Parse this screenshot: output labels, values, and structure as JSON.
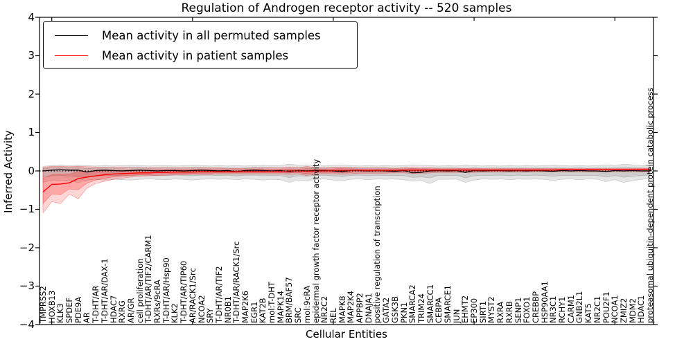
{
  "title": "Regulation of Androgen receptor activity -- 520 samples",
  "legend": {
    "items": [
      {
        "label": "Mean activity in all permuted samples",
        "color": "#000000"
      },
      {
        "label": "Mean activity in patient samples",
        "color": "#ff0000"
      }
    ]
  },
  "chart_data": {
    "type": "line",
    "title": "Regulation of Androgen receptor activity -- 520 samples",
    "xlabel": "Cellular Entities",
    "ylabel": "Inferred Activity",
    "ylim": [
      -4,
      4
    ],
    "yticks": [
      4,
      3,
      2,
      1,
      0,
      -1,
      -2,
      -3,
      -4
    ],
    "grid": false,
    "legend_position": "upper left",
    "reference_line": {
      "y": 0,
      "style": "dotted",
      "color": "#000000"
    },
    "categories": [
      "TMPRSS2",
      "HOXB13",
      "KLK3",
      "SPDEF",
      "PDE9A",
      "AR",
      "T-DHT/AR",
      "T-DHT/AR/DAX-1",
      "HDAC7",
      "RXRG",
      "AR/GR",
      "cell proliferation",
      "T-DHT/AR/TIF2/CARM1",
      "RXRs/9cRA",
      "T-DHT/AR/Hsp90",
      "KLK2",
      "T-DHT/AR/TIP60",
      "AR/RACK1/Src",
      "NCOA2",
      "SRY",
      "T-DHT/AR/TIF2",
      "NR0B1",
      "T-DHT/AR/RACK1/Src",
      "MAP2K6",
      "EGR1",
      "KAT2B",
      "mol:T-DHT",
      "MAPK14",
      "BRM/BAF57",
      "SRC",
      "mol:9cRA",
      "epidermal growth factor receptor activity",
      "NR2C2",
      "REL",
      "MAPK8",
      "MAP2K4",
      "APPBP2",
      "DNAJA1",
      "positive regulation of transcription",
      "GATA2",
      "GSK3B",
      "PKN1",
      "SMARCA2",
      "TRIM24",
      "SMARCC1",
      "CEBPA",
      "SMARCE1",
      "JUN",
      "EHMT2",
      "EP300",
      "SIRT1",
      "MYST2",
      "RXRA",
      "RXRB",
      "SENP1",
      "FOXO1",
      "CREBBP",
      "HSP90AA1",
      "NR3C1",
      "RCHY1",
      "CARM1",
      "GNB2L1",
      "KAT5",
      "NR2C1",
      "POU2F1",
      "NCOA1",
      "ZMIZ2",
      "MDM2",
      "HDAC1",
      "proteasomal ubiquitin-dependent protein catabolic process"
    ],
    "series": [
      {
        "name": "Mean activity in all permuted samples",
        "color": "#000000",
        "values": [
          0.0,
          0.02,
          0.03,
          0.02,
          0.02,
          -0.03,
          0.01,
          0.02,
          0.01,
          0.0,
          0.01,
          0.02,
          0.01,
          0.0,
          0.01,
          0.01,
          0.0,
          0.01,
          0.02,
          0.01,
          0.0,
          0.01,
          -0.02,
          0.01,
          0.02,
          0.01,
          0.0,
          0.01,
          -0.02,
          0.01,
          0.0,
          0.01,
          0.01,
          0.0,
          -0.02,
          0.01,
          0.01,
          0.0,
          0.01,
          0.0,
          -0.01,
          0.01,
          -0.05,
          -0.04,
          0.0,
          0.01,
          0.0,
          0.01,
          -0.04,
          0.01,
          0.0,
          0.01,
          0.01,
          0.0,
          0.01,
          0.0,
          0.01,
          0.0,
          -0.01,
          0.01,
          0.0,
          0.01,
          0.0,
          0.0,
          -0.02,
          0.01,
          0.0,
          0.01,
          0.0,
          0.0
        ]
      },
      {
        "name": "Mean activity in patient samples",
        "color": "#ff0000",
        "values": [
          -0.55,
          -0.35,
          -0.34,
          -0.31,
          -0.2,
          -0.16,
          -0.13,
          -0.1,
          -0.08,
          -0.07,
          -0.06,
          -0.05,
          -0.05,
          -0.04,
          -0.04,
          -0.03,
          -0.03,
          -0.03,
          -0.02,
          -0.02,
          -0.02,
          -0.02,
          -0.02,
          -0.01,
          -0.01,
          -0.01,
          -0.01,
          -0.01,
          0.0,
          0.0,
          -0.01,
          0.0,
          0.0,
          0.01,
          0.01,
          0.01,
          0.01,
          0.01,
          0.01,
          0.01,
          0.01,
          0.02,
          0.02,
          0.02,
          0.02,
          0.02,
          0.02,
          0.02,
          0.02,
          0.02,
          0.02,
          0.02,
          0.02,
          0.02,
          0.02,
          0.02,
          0.02,
          0.02,
          0.02,
          0.03,
          0.03,
          0.03,
          0.03,
          0.03,
          0.03,
          0.03,
          0.03,
          0.03,
          0.03,
          0.03
        ]
      }
    ],
    "bands": [
      {
        "name": "permuted samples range",
        "color": "#000000",
        "low": [
          -0.3,
          -0.25,
          -0.24,
          -0.26,
          -0.3,
          -0.24,
          -0.22,
          -0.24,
          -0.22,
          -0.23,
          -0.24,
          -0.22,
          -0.21,
          -0.22,
          -0.23,
          -0.21,
          -0.22,
          -0.24,
          -0.22,
          -0.21,
          -0.22,
          -0.21,
          -0.23,
          -0.21,
          -0.22,
          -0.24,
          -0.22,
          -0.23,
          -0.3,
          -0.24,
          -0.26,
          -0.22,
          -0.21,
          -0.24,
          -0.26,
          -0.22,
          -0.21,
          -0.23,
          -0.21,
          -0.22,
          -0.21,
          -0.23,
          -0.27,
          -0.25,
          -0.33,
          -0.22,
          -0.22,
          -0.21,
          -0.3,
          -0.24,
          -0.21,
          -0.22,
          -0.21,
          -0.23,
          -0.21,
          -0.22,
          -0.21,
          -0.22,
          -0.25,
          -0.22,
          -0.21,
          -0.23,
          -0.21,
          -0.22,
          -0.28,
          -0.23,
          -0.3,
          -0.26,
          -0.22,
          -0.2
        ],
        "high": [
          0.12,
          0.14,
          0.15,
          0.14,
          0.15,
          0.14,
          0.13,
          0.14,
          0.13,
          0.14,
          0.15,
          0.14,
          0.13,
          0.14,
          0.14,
          0.13,
          0.14,
          0.15,
          0.14,
          0.13,
          0.14,
          0.13,
          0.14,
          0.13,
          0.14,
          0.15,
          0.14,
          0.14,
          0.18,
          0.15,
          0.16,
          0.14,
          0.13,
          0.15,
          0.16,
          0.14,
          0.13,
          0.14,
          0.13,
          0.14,
          0.13,
          0.14,
          0.16,
          0.15,
          0.14,
          0.13,
          0.14,
          0.13,
          0.15,
          0.14,
          0.13,
          0.14,
          0.13,
          0.14,
          0.13,
          0.14,
          0.13,
          0.14,
          0.15,
          0.14,
          0.13,
          0.14,
          0.13,
          0.14,
          0.16,
          0.14,
          0.18,
          0.16,
          0.14,
          0.13
        ]
      },
      {
        "name": "patient samples range",
        "color": "#ff0000",
        "low": [
          -1.1,
          -0.8,
          -0.85,
          -0.6,
          -0.73,
          -0.45,
          -0.33,
          -0.27,
          -0.22,
          -0.19,
          -0.16,
          -0.14,
          -0.13,
          -0.12,
          -0.11,
          -0.1,
          -0.1,
          -0.09,
          -0.09,
          -0.09,
          -0.08,
          -0.08,
          -0.08,
          -0.08,
          -0.08,
          -0.08,
          -0.08,
          -0.08,
          -0.09,
          -0.08,
          -0.12,
          -0.08,
          -0.07,
          -0.08,
          -0.09,
          -0.08,
          -0.06,
          -0.06,
          -0.06,
          -0.06,
          -0.05,
          -0.05,
          -0.07,
          -0.06,
          -0.05,
          -0.04,
          -0.04,
          -0.04,
          -0.04,
          -0.04,
          -0.03,
          -0.03,
          -0.03,
          -0.03,
          -0.03,
          -0.03,
          -0.02,
          -0.02,
          -0.02,
          -0.02,
          -0.02,
          -0.02,
          -0.02,
          -0.02,
          -0.02,
          -0.02,
          -0.02,
          -0.02,
          -0.02,
          -0.02
        ],
        "high": [
          0.09,
          0.12,
          0.12,
          0.11,
          0.12,
          0.11,
          0.1,
          0.09,
          0.09,
          0.09,
          0.08,
          0.08,
          0.08,
          0.08,
          0.08,
          0.08,
          0.08,
          0.08,
          0.08,
          0.08,
          0.08,
          0.07,
          0.07,
          0.07,
          0.08,
          0.08,
          0.08,
          0.08,
          0.09,
          0.08,
          0.12,
          0.08,
          0.08,
          0.09,
          0.1,
          0.09,
          0.08,
          0.08,
          0.08,
          0.08,
          0.07,
          0.08,
          0.09,
          0.08,
          0.08,
          0.07,
          0.07,
          0.07,
          0.07,
          0.07,
          0.06,
          0.06,
          0.06,
          0.06,
          0.06,
          0.06,
          0.06,
          0.06,
          0.06,
          0.06,
          0.06,
          0.06,
          0.06,
          0.06,
          0.06,
          0.06,
          0.06,
          0.06,
          0.07,
          0.07
        ]
      }
    ]
  }
}
